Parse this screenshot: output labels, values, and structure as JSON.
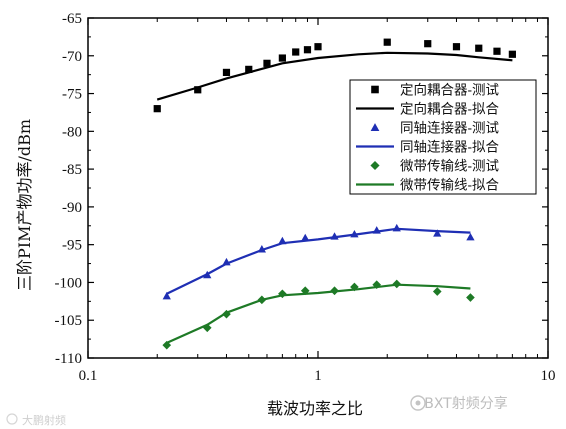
{
  "chart_data": {
    "type": "scatter",
    "xlabel": "载波功率之比",
    "ylabel": "三阶PIM产物功率/dBm",
    "x_scale": "log",
    "xlim": [
      0.1,
      10
    ],
    "ylim": [
      -110,
      -65
    ],
    "x_ticks": [
      {
        "value": 0.1,
        "label": "0.1"
      },
      {
        "value": 1,
        "label": "1"
      },
      {
        "value": 10,
        "label": "10"
      }
    ],
    "y_ticks": [
      -65,
      -70,
      -75,
      -80,
      -85,
      -90,
      -95,
      -100,
      -105,
      -110
    ],
    "grid": false,
    "legend_position": "top-right",
    "series": [
      {
        "name": "定向耦合器-测试",
        "kind": "points",
        "marker": "square",
        "color": "#000000",
        "x": [
          0.2,
          0.3,
          0.4,
          0.5,
          0.6,
          0.7,
          0.8,
          0.9,
          1.0,
          2.0,
          3.0,
          4.0,
          5.0,
          6.0,
          7.0
        ],
        "y": [
          -77.0,
          -74.5,
          -72.2,
          -71.8,
          -71.0,
          -70.3,
          -69.5,
          -69.2,
          -68.8,
          -68.2,
          -68.4,
          -68.8,
          -69.0,
          -69.4,
          -69.8
        ]
      },
      {
        "name": "定向耦合器-拟合",
        "kind": "line",
        "color": "#000000",
        "x": [
          0.2,
          0.3,
          0.4,
          0.5,
          0.7,
          1.0,
          1.5,
          2.0,
          3.0,
          4.0,
          5.0,
          7.0
        ],
        "y": [
          -75.8,
          -74.2,
          -73.0,
          -72.2,
          -71.0,
          -70.3,
          -69.8,
          -69.6,
          -69.7,
          -69.9,
          -70.2,
          -70.6
        ]
      },
      {
        "name": "同轴连接器-测试",
        "kind": "points",
        "marker": "triangle",
        "color": "#1f2fb4",
        "x": [
          0.22,
          0.33,
          0.4,
          0.57,
          0.7,
          0.88,
          1.18,
          1.44,
          1.8,
          2.2,
          3.3,
          4.6
        ],
        "y": [
          -101.8,
          -99.0,
          -97.3,
          -95.6,
          -94.5,
          -94.1,
          -93.9,
          -93.6,
          -93.1,
          -92.8,
          -93.5,
          -94.0
        ]
      },
      {
        "name": "同轴连接器-拟合",
        "kind": "line",
        "color": "#1f2fb4",
        "x": [
          0.22,
          0.33,
          0.4,
          0.57,
          0.7,
          1.0,
          1.5,
          2.2,
          3.3,
          4.6
        ],
        "y": [
          -101.5,
          -98.9,
          -97.5,
          -95.7,
          -94.8,
          -94.3,
          -93.6,
          -92.9,
          -93.2,
          -93.4
        ]
      },
      {
        "name": "微带传输线-测试",
        "kind": "points",
        "marker": "diamond",
        "color": "#1e7a26",
        "x": [
          0.22,
          0.33,
          0.4,
          0.57,
          0.7,
          0.88,
          1.18,
          1.44,
          1.8,
          2.2,
          3.3,
          4.6
        ],
        "y": [
          -108.3,
          -106.0,
          -104.2,
          -102.3,
          -101.5,
          -101.1,
          -101.1,
          -100.6,
          -100.3,
          -100.2,
          -101.2,
          -102.0
        ]
      },
      {
        "name": "微带传输线-拟合",
        "kind": "line",
        "color": "#1e7a26",
        "x": [
          0.22,
          0.33,
          0.4,
          0.57,
          0.7,
          1.0,
          1.5,
          2.2,
          3.3,
          4.6
        ],
        "y": [
          -108.0,
          -105.6,
          -104.0,
          -102.3,
          -101.7,
          -101.4,
          -100.9,
          -100.3,
          -100.5,
          -100.8
        ]
      }
    ]
  },
  "watermarks": {
    "left": "大鹏射频",
    "right": "BXT射频分享"
  }
}
